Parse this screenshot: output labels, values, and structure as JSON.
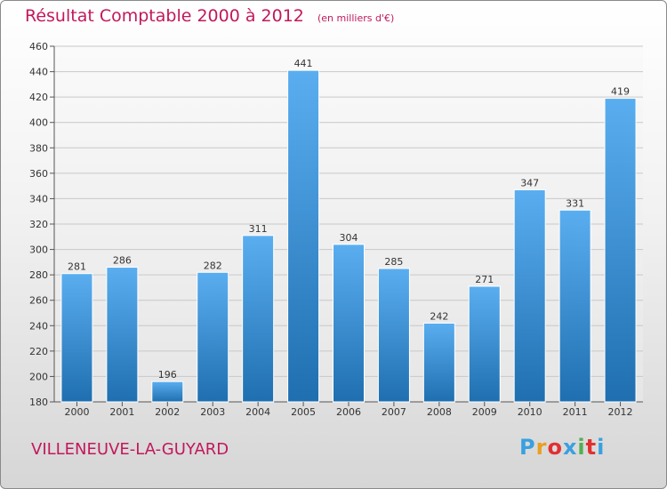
{
  "header": {
    "title": "Résultat Comptable 2000 à 2012",
    "subtitle": "(en milliers d'€)"
  },
  "footer": {
    "place": "VILLENEUVE-LA-GUYARD",
    "logo": "Proxiti"
  },
  "colors": {
    "bar_light": "#5aaef0",
    "bar_dark": "#1f6fb0",
    "title": "#c2185b",
    "logo": [
      "#3aa0e0",
      "#e8a020",
      "#e23030",
      "#3aa0e0",
      "#50b050",
      "#e23030",
      "#3aa0e0"
    ]
  },
  "chart_data": {
    "type": "bar",
    "title": "Résultat Comptable 2000 à 2012",
    "subtitle": "(en milliers d'€)",
    "xlabel": "",
    "ylabel": "",
    "categories": [
      "2000",
      "2001",
      "2002",
      "2003",
      "2004",
      "2005",
      "2006",
      "2007",
      "2008",
      "2009",
      "2010",
      "2011",
      "2012"
    ],
    "values": [
      281,
      286,
      196,
      282,
      311,
      441,
      304,
      285,
      242,
      271,
      347,
      331,
      419
    ],
    "ylim": [
      180,
      460
    ],
    "yticks": [
      180,
      200,
      220,
      240,
      260,
      280,
      300,
      320,
      340,
      360,
      380,
      400,
      420,
      440,
      460
    ],
    "grid": true,
    "data_labels": true
  }
}
